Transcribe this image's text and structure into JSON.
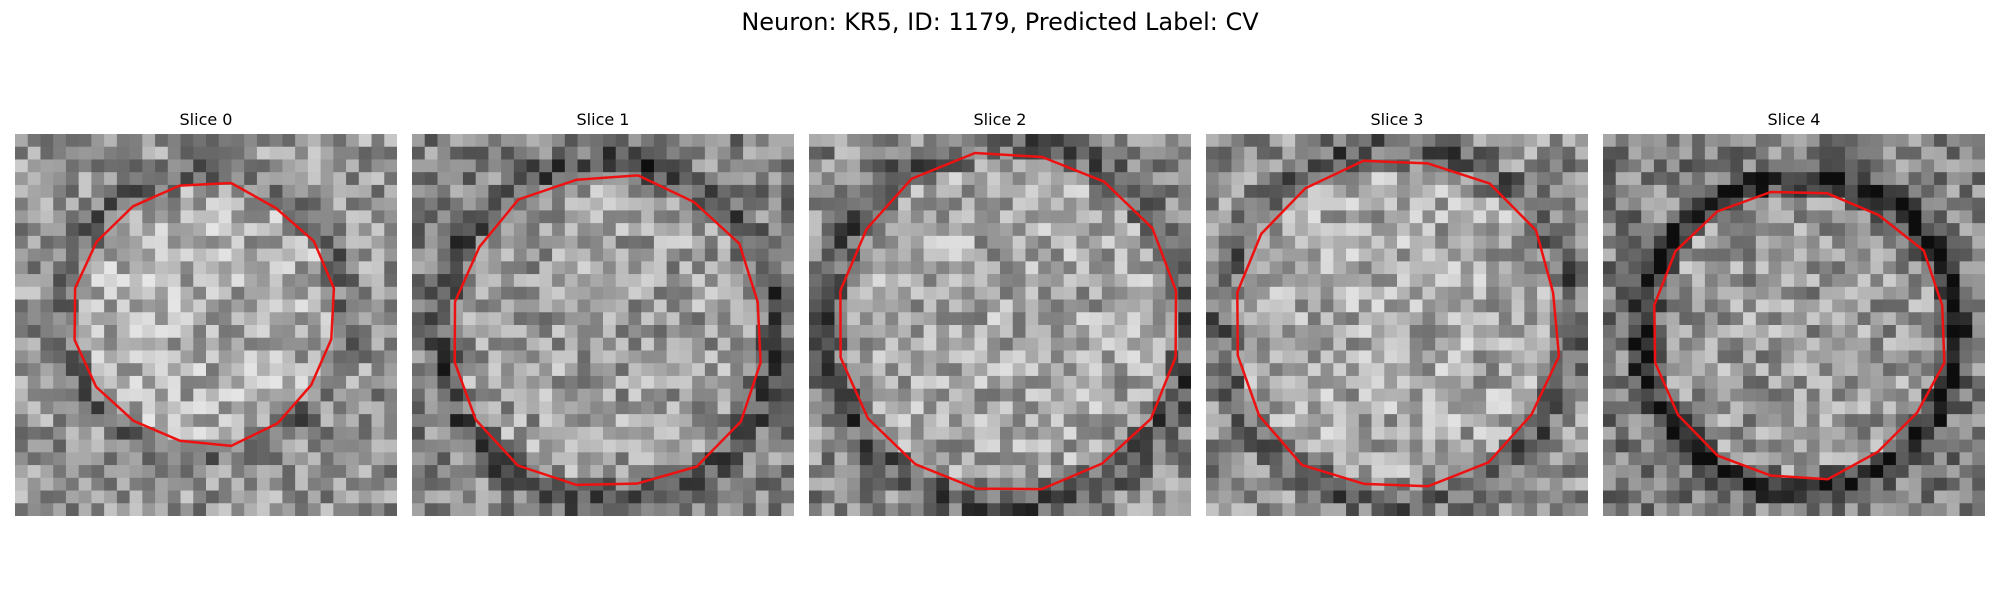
{
  "figure": {
    "title": "Neuron: KR5, ID: 1179, Predicted Label: CV",
    "contour_color": "#ee1111",
    "panels": [
      {
        "title": "Slice 0",
        "mean_intensity": 0.58
      },
      {
        "title": "Slice 1",
        "mean_intensity": 0.52
      },
      {
        "title": "Slice 2",
        "mean_intensity": 0.55
      },
      {
        "title": "Slice 3",
        "mean_intensity": 0.56
      },
      {
        "title": "Slice 4",
        "mean_intensity": 0.5
      }
    ]
  }
}
